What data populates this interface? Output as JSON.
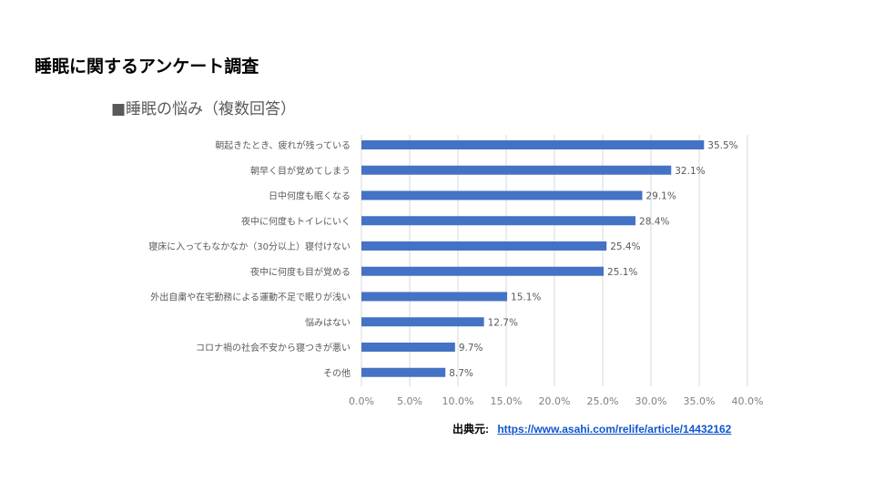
{
  "slide_title": "睡眠に関するアンケート調査",
  "source": {
    "label": "出典元:",
    "url": "https://www.asahi.com/relife/article/14432162"
  },
  "chart_data": {
    "type": "bar",
    "orientation": "horizontal",
    "title": "■睡眠の悩み（複数回答）",
    "categories": [
      "朝起きたとき、疲れが残っている",
      "朝早く目が覚めてしまう",
      "日中何度も眠くなる",
      "夜中に何度もトイレにいく",
      "寝床に入ってもなかなか（30分以上）寝付けない",
      "夜中に何度も目が覚める",
      "外出自粛や在宅勤務による運動不足で眠りが浅い",
      "悩みはない",
      "コロナ禍の社会不安から寝つきが悪い",
      "その他"
    ],
    "values": [
      35.5,
      32.1,
      29.1,
      28.4,
      25.4,
      25.1,
      15.1,
      12.7,
      9.7,
      8.7
    ],
    "value_labels": [
      "35.5%",
      "32.1%",
      "29.1%",
      "28.4%",
      "25.4%",
      "25.1%",
      "15.1%",
      "12.7%",
      "9.7%",
      "8.7%"
    ],
    "xlim": [
      0,
      40
    ],
    "xticks": [
      "0.0%",
      "5.0%",
      "10.0%",
      "15.0%",
      "20.0%",
      "25.0%",
      "30.0%",
      "35.0%",
      "40.0%"
    ],
    "grid": "vertical",
    "bar_color": "#4472c4"
  }
}
